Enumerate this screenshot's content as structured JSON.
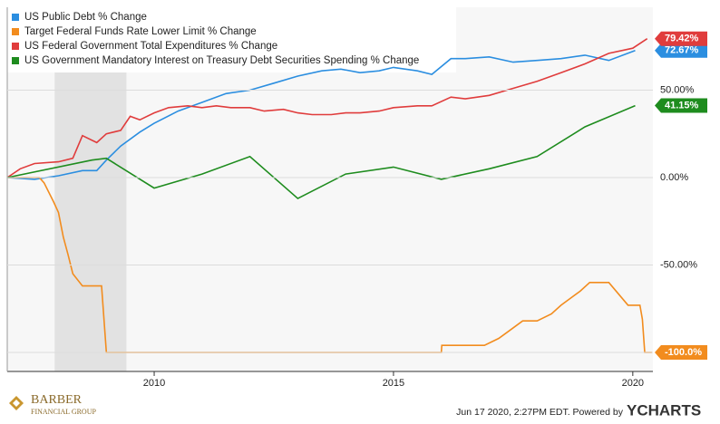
{
  "chart_data": {
    "type": "line",
    "xlim": [
      2006.93,
      2020.42
    ],
    "xticks": [
      2010,
      2015,
      2020
    ],
    "ylim": [
      -110.9,
      97.4
    ],
    "yticks": [
      {
        "value": 50,
        "label": "50.00%"
      },
      {
        "value": 0,
        "label": "0.00%"
      },
      {
        "value": -50,
        "label": "-50.00%"
      },
      {
        "value": -100,
        "label": "-100.00%"
      }
    ],
    "recession": [
      2007.92,
      2009.42
    ],
    "series": [
      {
        "name": "US Public Debt % Change",
        "color": "#2b8ee0",
        "last_value_label": "72.67%",
        "x": [
          2006.93,
          2007.5,
          2008.0,
          2008.5,
          2008.8,
          2009.0,
          2009.3,
          2009.7,
          2010.0,
          2010.5,
          2011.0,
          2011.5,
          2012.0,
          2012.5,
          2013.0,
          2013.5,
          2013.9,
          2014.3,
          2014.7,
          2015.0,
          2015.5,
          2015.8,
          2016.2,
          2016.5,
          2017.0,
          2017.5,
          2018.0,
          2018.5,
          2019.0,
          2019.5,
          2020.05
        ],
        "values": [
          0,
          -1,
          1,
          4,
          4,
          10,
          18,
          26,
          31,
          38,
          43,
          48,
          50,
          54,
          58,
          61,
          62,
          60,
          61,
          63,
          61,
          59,
          68,
          68,
          69,
          66,
          67,
          68,
          70,
          67,
          72.67
        ]
      },
      {
        "name": "Target Federal Funds Rate Lower Limit % Change",
        "color": "#f28c1e",
        "last_value_label": "-100.0%",
        "x": [
          2006.93,
          2007.6,
          2007.7,
          2007.9,
          2008.0,
          2008.1,
          2008.2,
          2008.3,
          2008.5,
          2008.9,
          2009.0,
          2016.0,
          2016.01,
          2016.9,
          2017.2,
          2017.4,
          2017.7,
          2018.0,
          2018.3,
          2018.5,
          2018.7,
          2018.9,
          2019.1,
          2019.5,
          2019.9,
          2020.15,
          2020.2,
          2020.25,
          2020.4
        ],
        "values": [
          0,
          0,
          -3,
          -14,
          -20,
          -34,
          -44,
          -55,
          -62,
          -62,
          -100,
          -100,
          -96,
          -96,
          -92,
          -88,
          -82,
          -82,
          -78,
          -73,
          -69,
          -65,
          -60,
          -60,
          -73,
          -73,
          -81,
          -100,
          -100
        ]
      },
      {
        "name": "US Federal Government Total Expenditures % Change",
        "color": "#e03c3c",
        "last_value_label": "79.42%",
        "x": [
          2006.93,
          2007.2,
          2007.5,
          2008.0,
          2008.3,
          2008.5,
          2008.8,
          2009.0,
          2009.3,
          2009.5,
          2009.7,
          2010.0,
          2010.3,
          2010.7,
          2011.0,
          2011.3,
          2011.6,
          2012.0,
          2012.3,
          2012.7,
          2013.0,
          2013.3,
          2013.7,
          2014.0,
          2014.3,
          2014.7,
          2015.0,
          2015.5,
          2015.8,
          2016.2,
          2016.5,
          2017.0,
          2017.5,
          2018.0,
          2018.5,
          2019.0,
          2019.5,
          2020.0,
          2020.3
        ],
        "values": [
          0,
          5,
          8,
          9,
          11,
          24,
          20,
          25,
          27,
          35,
          33,
          37,
          40,
          41,
          40,
          41,
          40,
          40,
          38,
          39,
          37,
          36,
          36,
          37,
          37,
          38,
          40,
          41,
          41,
          46,
          45,
          47,
          51,
          55,
          60,
          65,
          71,
          74,
          79.42
        ]
      },
      {
        "name": "US Government Mandatory Interest on Treasury Debt Securities Spending % Change",
        "color": "#1e8c1e",
        "last_value_label": "41.15%",
        "x": [
          2006.93,
          2008.7,
          2009.0,
          2010.0,
          2011.0,
          2012.0,
          2013.0,
          2014.0,
          2015.0,
          2016.0,
          2017.0,
          2018.0,
          2019.0,
          2020.05
        ],
        "values": [
          0,
          10,
          11,
          -6,
          2,
          12,
          -12,
          2,
          6,
          -1,
          5,
          12,
          29,
          41.15
        ]
      }
    ],
    "footer": {
      "timestamp": "Jun 17 2020, 2:27PM EDT.  Powered by",
      "brand": "YCHARTS",
      "logo_top": "BARBER",
      "logo_bottom": "FINANCIAL GROUP"
    }
  }
}
